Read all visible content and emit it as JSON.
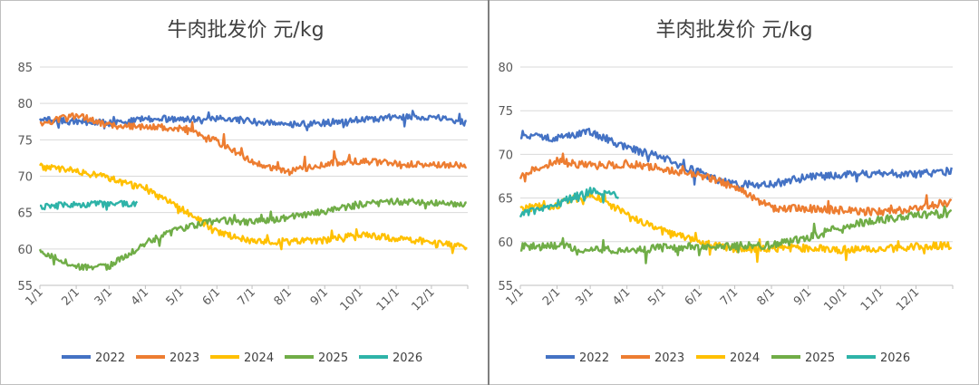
{
  "chart_data": [
    {
      "type": "line",
      "title": "牛肉批发价 元/kg",
      "xlabel": "",
      "ylabel": "",
      "ylim": [
        55,
        85
      ],
      "y_ticks": [
        "55",
        "60",
        "65",
        "70",
        "75",
        "80",
        "85"
      ],
      "x_ticks": [
        "1/1",
        "2/1",
        "3/1",
        "4/1",
        "5/1",
        "6/1",
        "7/1",
        "8/1",
        "9/1",
        "10/1",
        "11/1",
        "12/1"
      ],
      "grid": true,
      "legend_position": "bottom",
      "series": [
        {
          "name": "2022",
          "color": "#4472c4",
          "x": [
            "1/1",
            "2/1",
            "3/1",
            "4/1",
            "5/1",
            "6/1",
            "7/1",
            "8/1",
            "9/1",
            "10/1",
            "11/1",
            "12/1",
            "12/31"
          ],
          "values": [
            77.8,
            77.5,
            77.3,
            77.9,
            77.8,
            78.0,
            77.6,
            77.1,
            77.3,
            77.8,
            78.1,
            78.2,
            77.3
          ]
        },
        {
          "name": "2023",
          "color": "#ed7d31",
          "x": [
            "1/1",
            "2/1",
            "3/1",
            "4/1",
            "5/1",
            "6/1",
            "7/1",
            "8/1",
            "9/1",
            "10/1",
            "11/1",
            "12/1",
            "12/31"
          ],
          "values": [
            77.2,
            78.4,
            77.0,
            76.8,
            76.6,
            74.8,
            72.0,
            70.6,
            71.7,
            72.1,
            71.7,
            71.6,
            71.4
          ]
        },
        {
          "name": "2024",
          "color": "#ffc000",
          "x": [
            "1/1",
            "2/1",
            "3/1",
            "4/1",
            "5/1",
            "6/1",
            "7/1",
            "8/1",
            "9/1",
            "10/1",
            "11/1",
            "12/1",
            "12/31"
          ],
          "values": [
            71.3,
            70.7,
            69.8,
            68.2,
            65.6,
            62.4,
            61.0,
            61.0,
            61.2,
            62.0,
            61.4,
            61.0,
            60.3
          ]
        },
        {
          "name": "2025",
          "color": "#70ad47",
          "x": [
            "1/1",
            "2/1",
            "3/1",
            "4/1",
            "5/1",
            "6/1",
            "7/1",
            "8/1",
            "9/1",
            "10/1",
            "11/1",
            "12/1",
            "12/31"
          ],
          "values": [
            59.8,
            57.5,
            57.6,
            60.8,
            62.8,
            63.9,
            63.7,
            64.3,
            65.2,
            66.1,
            66.5,
            66.4,
            66.0
          ]
        },
        {
          "name": "2026",
          "color": "#2eb3a8",
          "x": [
            "1/1",
            "2/1",
            "3/1",
            "3/25"
          ],
          "values": [
            65.8,
            66.1,
            66.2,
            66.3
          ]
        }
      ]
    },
    {
      "type": "line",
      "title": "羊肉批发价 元/kg",
      "xlabel": "",
      "ylabel": "",
      "ylim": [
        55,
        80
      ],
      "y_ticks": [
        "55",
        "60",
        "65",
        "70",
        "75",
        "80"
      ],
      "x_ticks": [
        "1/1",
        "2/1",
        "3/1",
        "4/1",
        "5/1",
        "6/1",
        "7/1",
        "8/1",
        "9/1",
        "10/1",
        "11/1",
        "12/1"
      ],
      "grid": true,
      "legend_position": "bottom",
      "series": [
        {
          "name": "2022",
          "color": "#4472c4",
          "x": [
            "1/1",
            "2/1",
            "3/1",
            "4/1",
            "5/1",
            "6/1",
            "7/1",
            "8/1",
            "9/1",
            "10/1",
            "11/1",
            "12/1",
            "12/31"
          ],
          "values": [
            72.3,
            71.8,
            72.6,
            70.8,
            69.6,
            67.9,
            66.5,
            66.6,
            67.4,
            67.6,
            67.9,
            67.7,
            68.1
          ]
        },
        {
          "name": "2023",
          "color": "#ed7d31",
          "x": [
            "1/1",
            "2/1",
            "3/1",
            "4/1",
            "5/1",
            "6/1",
            "7/1",
            "8/1",
            "9/1",
            "10/1",
            "11/1",
            "12/1",
            "12/31"
          ],
          "values": [
            67.6,
            69.2,
            68.7,
            68.9,
            68.4,
            67.6,
            66.3,
            63.9,
            63.8,
            63.6,
            63.4,
            63.8,
            64.6
          ]
        },
        {
          "name": "2024",
          "color": "#ffc000",
          "x": [
            "1/1",
            "2/1",
            "3/1",
            "4/1",
            "5/1",
            "6/1",
            "7/1",
            "8/1",
            "9/1",
            "10/1",
            "11/1",
            "12/1",
            "12/31"
          ],
          "values": [
            63.8,
            64.2,
            65.5,
            63.2,
            61.2,
            59.9,
            59.2,
            59.2,
            59.3,
            59.1,
            59.2,
            59.4,
            59.6
          ]
        },
        {
          "name": "2025",
          "color": "#70ad47",
          "x": [
            "1/1",
            "2/1",
            "3/1",
            "4/1",
            "5/1",
            "6/1",
            "7/1",
            "8/1",
            "9/1",
            "10/1",
            "11/1",
            "12/1",
            "12/31"
          ],
          "values": [
            59.4,
            59.5,
            59.1,
            59.0,
            59.3,
            59.5,
            59.5,
            59.6,
            60.4,
            61.8,
            62.5,
            63.1,
            63.2
          ]
        },
        {
          "name": "2026",
          "color": "#2eb3a8",
          "x": [
            "1/1",
            "2/1",
            "3/1",
            "3/25"
          ],
          "values": [
            63.2,
            64.3,
            65.8,
            65.2
          ]
        }
      ]
    }
  ]
}
